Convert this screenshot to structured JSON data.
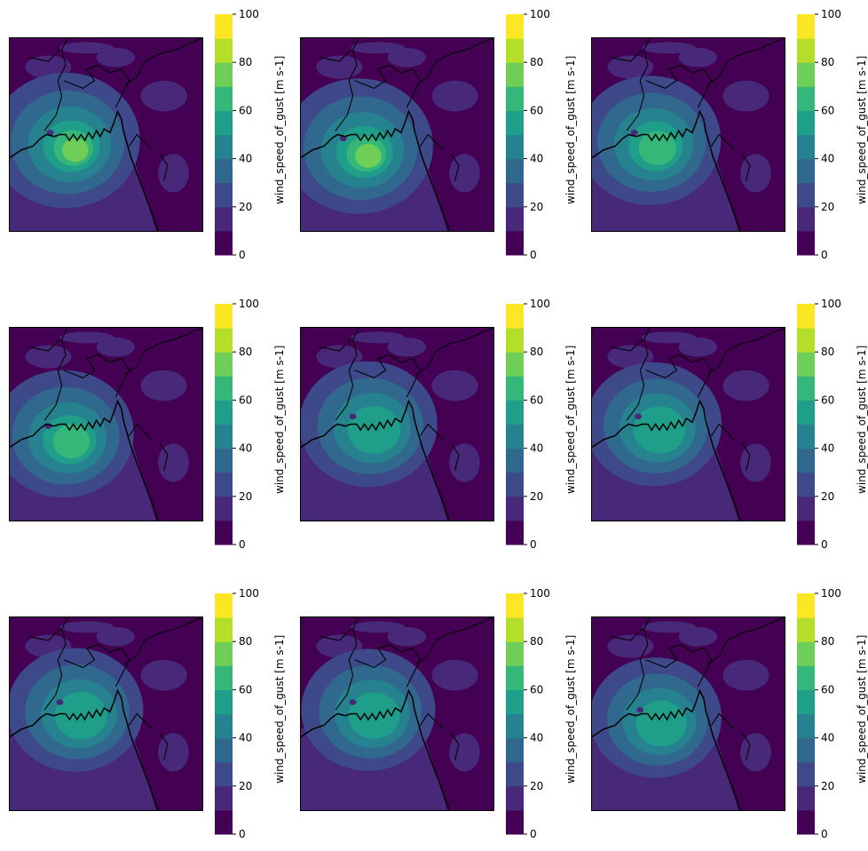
{
  "figure": {
    "colorbar_label": "wind_speed_of_gust [m s-1]",
    "colorbar_ticks": [
      "0",
      "20",
      "40",
      "60",
      "80",
      "100"
    ],
    "colorbar_levels": [
      0,
      10,
      20,
      30,
      40,
      50,
      60,
      70,
      80,
      90,
      100
    ],
    "colorbar_colors": [
      "#440154",
      "#482878",
      "#3e4989",
      "#31688e",
      "#26828e",
      "#1f9e89",
      "#35b779",
      "#6ece58",
      "#b5de2b",
      "#fde725"
    ]
  },
  "panels": [
    {
      "cyclone_peak": 0.95,
      "core_x": 0.21,
      "core_y": 0.49
    },
    {
      "cyclone_peak": 0.95,
      "core_x": 0.22,
      "core_y": 0.52
    },
    {
      "cyclone_peak": 0.82,
      "core_x": 0.22,
      "core_y": 0.49
    },
    {
      "cyclone_peak": 0.78,
      "core_x": 0.2,
      "core_y": 0.51
    },
    {
      "cyclone_peak": 0.74,
      "core_x": 0.27,
      "core_y": 0.46
    },
    {
      "cyclone_peak": 0.7,
      "core_x": 0.24,
      "core_y": 0.46
    },
    {
      "cyclone_peak": 0.7,
      "core_x": 0.26,
      "core_y": 0.44
    },
    {
      "cyclone_peak": 0.66,
      "core_x": 0.27,
      "core_y": 0.44
    },
    {
      "cyclone_peak": 0.62,
      "core_x": 0.25,
      "core_y": 0.48
    }
  ]
}
